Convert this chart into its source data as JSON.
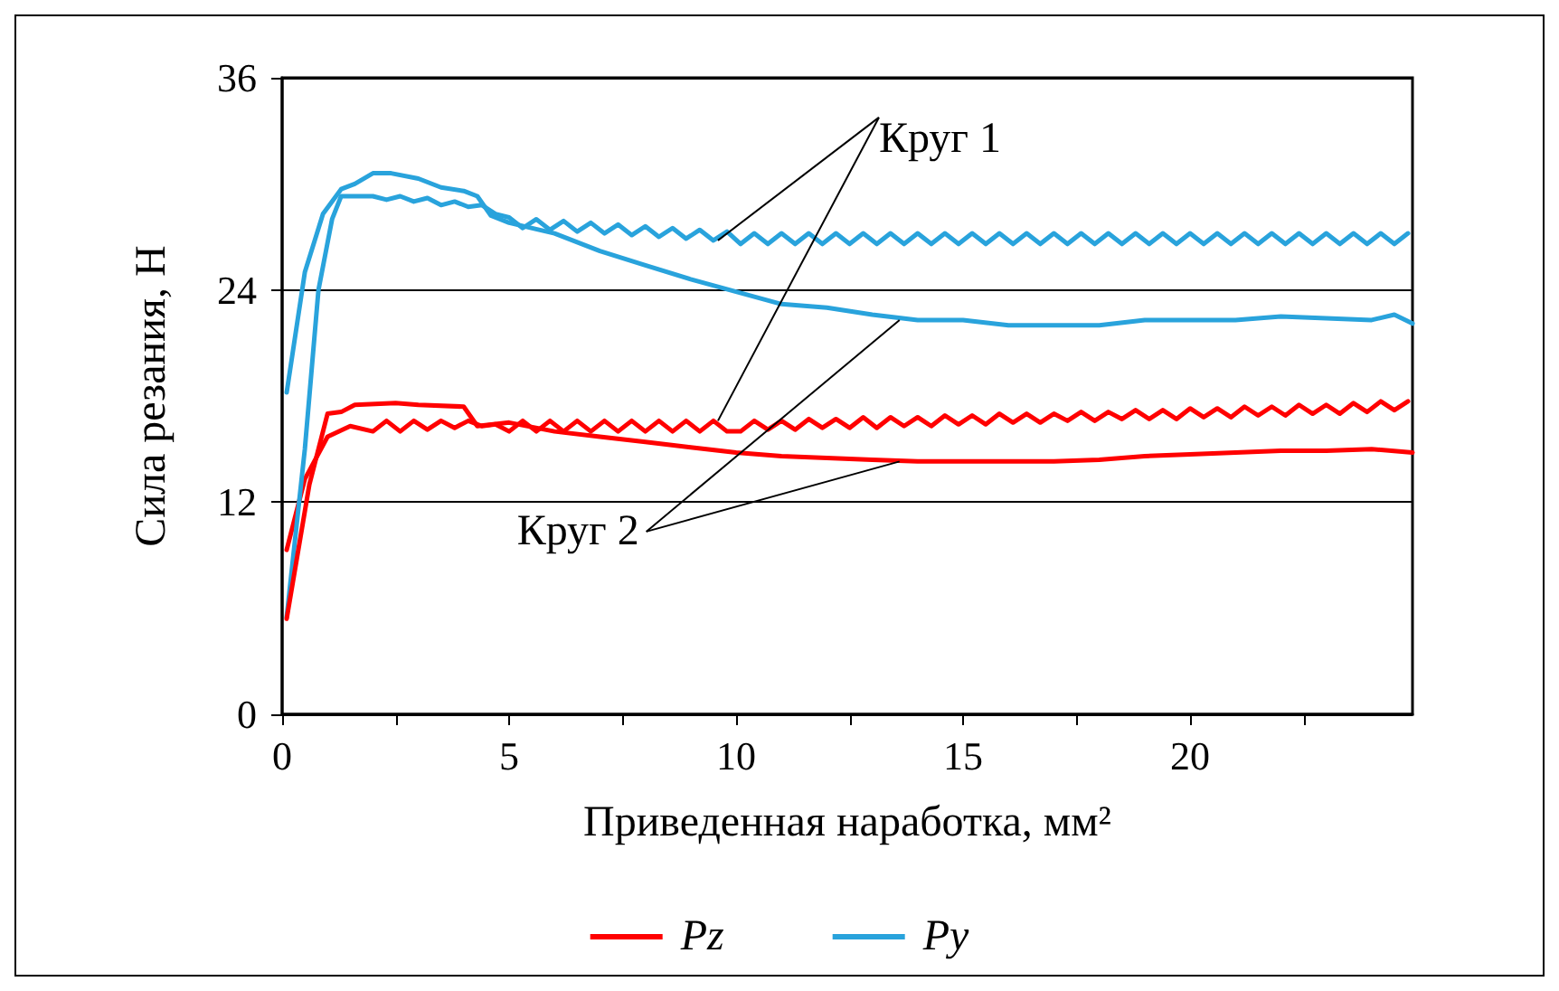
{
  "chart_data": {
    "type": "line",
    "xlabel": "Приведенная наработка, мм²",
    "ylabel": "Сила резания, Н",
    "xlim": [
      0,
      24.9
    ],
    "xticks": [
      0,
      {
        "value": 2.5,
        "label": null
      },
      5,
      {
        "value": 7.5,
        "label": null
      },
      10,
      {
        "value": 12.5,
        "label": null
      },
      15,
      {
        "value": 17.5,
        "label": null
      },
      20,
      {
        "value": 22.5,
        "label": null
      }
    ],
    "ylim": [
      0,
      36
    ],
    "yticks": [
      0,
      12,
      24,
      36
    ],
    "grid": "y",
    "legend": "bottom",
    "marker": "none",
    "line_style": "solid",
    "annotations": [
      {
        "text": "Круг 1",
        "x": 9.6,
        "y": 26.8
      },
      {
        "text": "Круг 2",
        "x": 13.6,
        "y": 22.3
      }
    ],
    "series": [
      {
        "name": "Pz",
        "color": "#ff0000",
        "x": [
          0.1,
          0.5,
          1.0,
          1.5,
          2.0,
          2.3,
          2.6,
          2.9,
          3.2,
          3.5,
          3.8,
          4.1,
          4.4,
          4.7,
          5.0,
          5.3,
          5.6,
          5.9,
          6.2,
          6.5,
          6.8,
          7.1,
          7.4,
          7.7,
          8.0,
          8.3,
          8.6,
          8.9,
          9.2,
          9.5,
          9.8,
          10.1,
          10.4,
          10.7,
          11.0,
          11.3,
          11.6,
          11.9,
          12.2,
          12.5,
          12.8,
          13.1,
          13.4,
          13.7,
          14.0,
          14.3,
          14.6,
          14.9,
          15.2,
          15.5,
          15.8,
          16.1,
          16.4,
          16.7,
          17.0,
          17.3,
          17.6,
          17.9,
          18.2,
          18.5,
          18.8,
          19.1,
          19.4,
          19.7,
          20.0,
          20.3,
          20.6,
          20.9,
          21.2,
          21.5,
          21.8,
          22.1,
          22.4,
          22.7,
          23.0,
          23.3,
          23.6,
          23.9,
          24.2,
          24.5,
          24.8
        ],
        "values": [
          9.3,
          13.3,
          15.7,
          16.3,
          16.0,
          16.6,
          16.0,
          16.6,
          16.1,
          16.6,
          16.2,
          16.6,
          16.3,
          16.4,
          16.0,
          16.6,
          16.0,
          16.6,
          16.0,
          16.6,
          16.0,
          16.6,
          16.0,
          16.6,
          16.0,
          16.6,
          16.0,
          16.6,
          16.0,
          16.6,
          16.0,
          16.0,
          16.6,
          16.1,
          16.6,
          16.1,
          16.7,
          16.2,
          16.7,
          16.2,
          16.8,
          16.2,
          16.8,
          16.3,
          16.8,
          16.3,
          16.9,
          16.4,
          16.9,
          16.4,
          17.0,
          16.5,
          17.0,
          16.5,
          17.0,
          16.6,
          17.1,
          16.6,
          17.1,
          16.7,
          17.2,
          16.7,
          17.2,
          16.7,
          17.3,
          16.8,
          17.3,
          16.8,
          17.4,
          16.9,
          17.4,
          16.9,
          17.5,
          17.0,
          17.5,
          17.0,
          17.6,
          17.1,
          17.7,
          17.2,
          17.7
        ]
      },
      {
        "name": "Py",
        "color": "#29a3dc",
        "x": [
          0.1,
          0.5,
          0.8,
          1.1,
          1.3,
          2.0,
          2.3,
          2.6,
          2.9,
          3.2,
          3.5,
          3.8,
          4.1,
          4.4,
          4.7,
          5.0,
          5.3,
          5.6,
          5.9,
          6.2,
          6.5,
          6.8,
          7.1,
          7.4,
          7.7,
          8.0,
          8.3,
          8.6,
          8.9,
          9.2,
          9.5,
          9.8,
          10.1,
          10.4,
          10.7,
          11.0,
          11.3,
          11.6,
          11.9,
          12.2,
          12.5,
          12.8,
          13.1,
          13.4,
          13.7,
          14.0,
          14.3,
          14.6,
          14.9,
          15.2,
          15.5,
          15.8,
          16.1,
          16.4,
          16.7,
          17.0,
          17.3,
          17.6,
          17.9,
          18.2,
          18.5,
          18.8,
          19.1,
          19.4,
          19.7,
          20.0,
          20.3,
          20.6,
          20.9,
          21.2,
          21.5,
          21.8,
          22.1,
          22.4,
          22.7,
          23.0,
          23.3,
          23.6,
          23.9,
          24.2,
          24.5,
          24.8
        ],
        "values": [
          5.5,
          15,
          24,
          28,
          29.3,
          29.3,
          29.1,
          29.3,
          29.0,
          29.2,
          28.8,
          29.0,
          28.7,
          28.8,
          28.3,
          28.1,
          27.5,
          28.0,
          27.4,
          27.9,
          27.3,
          27.8,
          27.2,
          27.7,
          27.1,
          27.6,
          27.0,
          27.5,
          26.9,
          27.4,
          26.8,
          27.3,
          26.6,
          27.2,
          26.6,
          27.2,
          26.6,
          27.2,
          26.6,
          27.2,
          26.6,
          27.2,
          26.6,
          27.2,
          26.6,
          27.2,
          26.6,
          27.2,
          26.6,
          27.2,
          26.6,
          27.2,
          26.6,
          27.2,
          26.6,
          27.2,
          26.6,
          27.2,
          26.6,
          27.2,
          26.6,
          27.2,
          26.6,
          27.2,
          26.6,
          27.2,
          26.6,
          27.2,
          26.6,
          27.2,
          26.6,
          27.2,
          26.6,
          27.2,
          26.6,
          27.2,
          26.6,
          27.2,
          26.6,
          27.2,
          26.6,
          27.2
        ]
      },
      {
        "color": "#ff0000",
        "x": [
          0.1,
          0.6,
          1.0,
          1.3,
          1.6,
          2.5,
          3,
          4,
          4.3,
          5,
          6,
          7,
          8,
          9,
          10,
          11,
          12,
          13,
          14,
          15,
          16,
          17,
          18,
          19,
          20,
          21,
          22,
          23,
          24,
          24.9
        ],
        "values": [
          5.4,
          13,
          17.0,
          17.1,
          17.5,
          17.6,
          17.5,
          17.4,
          16.3,
          16.5,
          16.0,
          15.7,
          15.4,
          15.1,
          14.8,
          14.6,
          14.5,
          14.4,
          14.3,
          14.3,
          14.3,
          14.3,
          14.4,
          14.6,
          14.7,
          14.8,
          14.9,
          14.9,
          15.0,
          14.8
        ]
      },
      {
        "color": "#29a3dc",
        "x": [
          0.1,
          0.5,
          0.9,
          1.3,
          1.6,
          2,
          2.4,
          3,
          3.5,
          4,
          4.3,
          4.6,
          5,
          6,
          7,
          8,
          9,
          10,
          11,
          12,
          13,
          14,
          15,
          16,
          17,
          18,
          19,
          20,
          21,
          22,
          23,
          24,
          24.5,
          24.9
        ],
        "values": [
          18.2,
          25,
          28.3,
          29.7,
          30,
          30.6,
          30.6,
          30.3,
          29.8,
          29.6,
          29.3,
          28.2,
          27.8,
          27.2,
          26.2,
          25.4,
          24.6,
          23.9,
          23.2,
          23.0,
          22.6,
          22.3,
          22.3,
          22.0,
          22.0,
          22.0,
          22.3,
          22.3,
          22.3,
          22.5,
          22.4,
          22.3,
          22.6,
          22.1
        ]
      }
    ]
  }
}
